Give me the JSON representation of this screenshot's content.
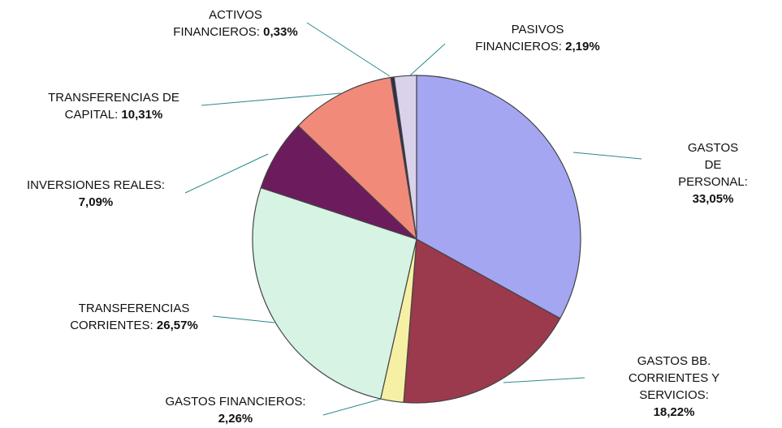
{
  "chart_data": {
    "type": "pie",
    "categories": [
      "GASTOS DE\nPERSONAL:",
      "GASTOS BB.\nCORRIENTES Y\nSERVICIOS:",
      "GASTOS FINANCIEROS:",
      "TRANSFERENCIAS\nCORRIENTES:",
      "INVERSIONES REALES:",
      "TRANSFERENCIAS DE\nCAPITAL:",
      "ACTIVOS\nFINANCIEROS:",
      "PASIVOS\nFINANCIEROS:"
    ],
    "values": [
      33.05,
      18.22,
      2.26,
      26.57,
      7.09,
      10.31,
      0.33,
      2.19
    ],
    "value_labels": [
      "33,05%",
      "18,22%",
      "2,26%",
      "26,57%",
      "7,09%",
      "10,31%",
      "0,33%",
      "2,19%"
    ],
    "colors": [
      "#a4a6f2",
      "#9a3a4c",
      "#f6f0a4",
      "#d6f3e4",
      "#6c1c5c",
      "#f28a7a",
      "#2e2e4e",
      "#dad2ea"
    ]
  }
}
